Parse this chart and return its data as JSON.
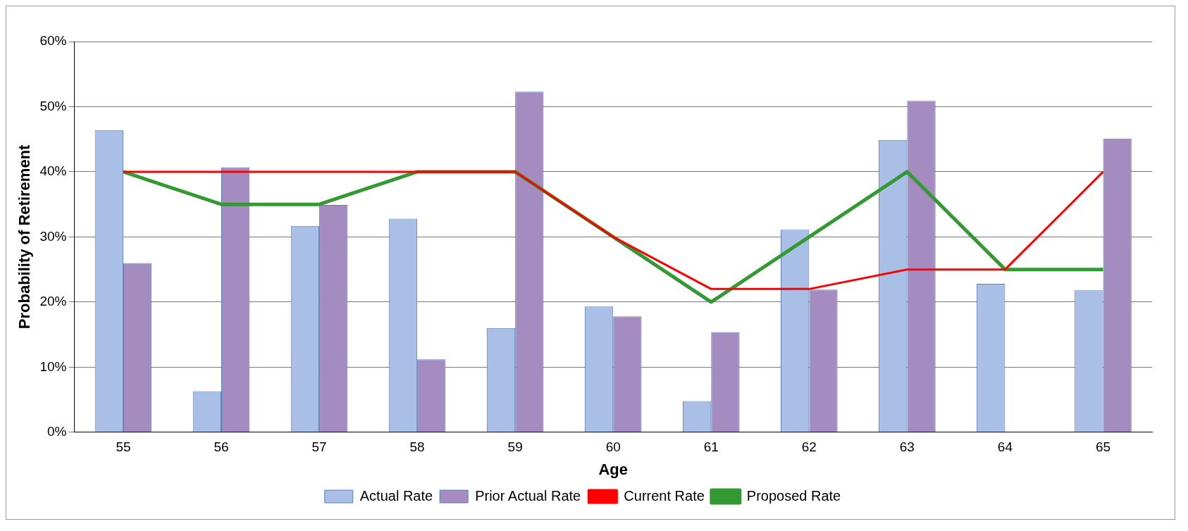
{
  "chart_data": {
    "type": "bar",
    "xlabel": "Age",
    "ylabel": "Probability of Retirement",
    "categories": [
      "55",
      "56",
      "57",
      "58",
      "59",
      "60",
      "61",
      "62",
      "63",
      "64",
      "65"
    ],
    "series": [
      {
        "name": "Actual Rate",
        "type": "bar",
        "color": "#a9bfe6",
        "values": [
          46.4,
          6.3,
          31.7,
          32.8,
          16,
          19.3,
          4.8,
          31.1,
          44.9,
          22.8,
          21.8
        ]
      },
      {
        "name": "Prior Actual Rate",
        "type": "bar",
        "color": "#a48cc0",
        "values": [
          26,
          40.7,
          34.9,
          11.2,
          52.3,
          17.8,
          15.4,
          21.9,
          50.9,
          null,
          45.1
        ]
      },
      {
        "name": "Current Rate",
        "type": "line",
        "color": "#ff0000",
        "values": [
          40,
          40,
          40,
          40,
          40,
          30,
          22,
          22,
          25,
          25,
          40
        ]
      },
      {
        "name": "Proposed Rate",
        "type": "line",
        "color": "#339933",
        "values": [
          40,
          35,
          35,
          40,
          40,
          30,
          20,
          30,
          40,
          25,
          25
        ]
      }
    ],
    "ylim": [
      0,
      60
    ],
    "yticks": [
      {
        "value": 0,
        "label": "0%"
      },
      {
        "value": 10,
        "label": "10%"
      },
      {
        "value": 20,
        "label": "20%"
      },
      {
        "value": 30,
        "label": "30%"
      },
      {
        "value": 40,
        "label": "40%"
      },
      {
        "value": 50,
        "label": "50%"
      },
      {
        "value": 60,
        "label": "60%"
      }
    ],
    "grid": "y",
    "legend": "bottom",
    "marker": "none",
    "line_style": "solid"
  }
}
